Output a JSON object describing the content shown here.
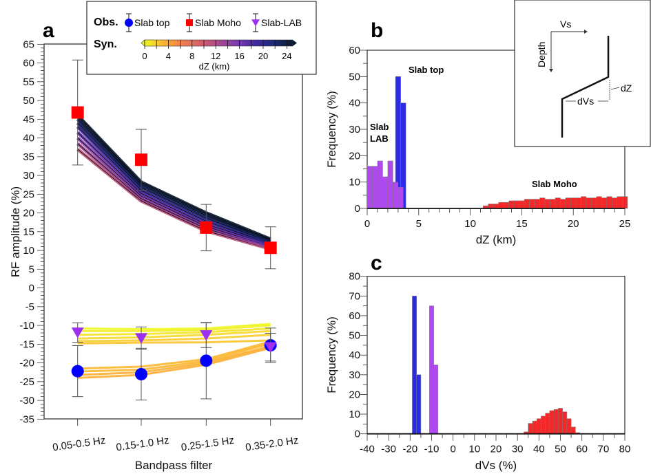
{
  "chart_data": [
    {
      "panel": "a",
      "type": "line",
      "xlabel": "Bandpass filter",
      "ylabel": "RF amplitude (%)",
      "categories": [
        "0.05-0.5 Hz",
        "0.15-1.0 Hz",
        "0.25-1.5 Hz",
        "0.35-2.0 Hz"
      ],
      "ylim": [
        -35,
        65
      ],
      "yticks": [
        65,
        60,
        55,
        50,
        45,
        40,
        35,
        30,
        25,
        20,
        15,
        10,
        5,
        0,
        -5,
        -10,
        -15,
        -20,
        -25,
        -30,
        -35
      ],
      "legend": {
        "obs_label": "Obs.",
        "syn_label": "Syn.",
        "entries": [
          {
            "name": "Slab top",
            "marker": "circle",
            "color": "#0000ff"
          },
          {
            "name": "Slab Moho",
            "marker": "square",
            "color": "#ff0000"
          },
          {
            "name": "Slab-LAB",
            "marker": "triangle-down",
            "color": "#9b30f0"
          }
        ],
        "colorbar": {
          "label": "dZ (km)",
          "ticks": [
            "0",
            "4",
            "8",
            "12",
            "16",
            "20",
            "24"
          ],
          "range": [
            0,
            25
          ],
          "colors": [
            "#f0f921",
            "#fdb42f",
            "#f0804f",
            "#d6606a",
            "#a84a8c",
            "#7a3ab0",
            "#3f2aa0",
            "#1c2a70",
            "#0a1a30"
          ]
        }
      },
      "observed": [
        {
          "name": "Slab Moho",
          "values": [
            46.8,
            34.2,
            16.1,
            10.7
          ],
          "errors": [
            14.0,
            8.1,
            6.2,
            5.6
          ]
        },
        {
          "name": "Slab top",
          "values": [
            -22.2,
            -23.0,
            -19.4,
            -15.3
          ],
          "errors": [
            6.8,
            6.9,
            10.2,
            4.6
          ]
        },
        {
          "name": "Slab-LAB",
          "values": [
            -11.9,
            -13.4,
            -12.6,
            -15.8
          ],
          "errors": [
            2.6,
            3.0,
            3.3,
            3.7
          ]
        }
      ],
      "synthetic": {
        "moho": [
          {
            "dZ": 11,
            "values": [
              37.0,
              23.2,
              15.2,
              10.4
            ]
          },
          {
            "dZ": 13,
            "values": [
              38.5,
              23.8,
              15.8,
              10.8
            ]
          },
          {
            "dZ": 15,
            "values": [
              40.0,
              24.5,
              16.4,
              11.1
            ]
          },
          {
            "dZ": 17,
            "values": [
              41.5,
              25.2,
              17.0,
              11.5
            ]
          },
          {
            "dZ": 19,
            "values": [
              43.0,
              26.0,
              17.8,
              11.8
            ]
          },
          {
            "dZ": 21,
            "values": [
              44.0,
              26.8,
              18.6,
              12.2
            ]
          },
          {
            "dZ": 23,
            "values": [
              45.0,
              27.5,
              19.3,
              12.6
            ]
          },
          {
            "dZ": 25,
            "values": [
              46.0,
              28.2,
              20.0,
              13.0
            ]
          }
        ],
        "lab": [
          {
            "dZ": 0,
            "values": [
              -10.8,
              -11.0,
              -10.8,
              -9.6
            ]
          },
          {
            "dZ": 0.5,
            "values": [
              -11.5,
              -11.5,
              -11.2,
              -10.0
            ]
          },
          {
            "dZ": 1,
            "values": [
              -12.5,
              -12.3,
              -11.8,
              -10.8
            ]
          },
          {
            "dZ": 1.5,
            "values": [
              -13.5,
              -13.2,
              -12.5,
              -11.5
            ]
          },
          {
            "dZ": 2,
            "values": [
              -14.2,
              -14.0,
              -13.5,
              -12.5
            ]
          },
          {
            "dZ": 2.5,
            "values": [
              -14.8,
              -14.6,
              -14.5,
              -14.0
            ]
          }
        ],
        "top": [
          {
            "dZ": 3,
            "values": [
              -21.5,
              -21.0,
              -19.0,
              -14.3
            ]
          },
          {
            "dZ": 3,
            "values": [
              -22.3,
              -21.8,
              -19.5,
              -14.8
            ]
          },
          {
            "dZ": 3.5,
            "values": [
              -23.2,
              -22.5,
              -20.0,
              -15.5
            ]
          },
          {
            "dZ": 3.5,
            "values": [
              -24.0,
              -23.2,
              -20.5,
              -16.0
            ]
          }
        ]
      }
    },
    {
      "panel": "b",
      "type": "bar",
      "xlabel": "dZ (km)",
      "ylabel": "Frequency (%)",
      "xlim": [
        0,
        25
      ],
      "ylim": [
        0,
        60
      ],
      "xticks": [
        "0",
        "5",
        "10",
        "15",
        "20",
        "25"
      ],
      "yticks": [
        "0",
        "10",
        "20",
        "30",
        "40",
        "50",
        "60"
      ],
      "annotations": [
        "Slab top",
        "Slab LAB",
        "Slab Moho"
      ],
      "series": [
        {
          "name": "Slab top",
          "color": "#2b2be8",
          "bin_width": 0.5,
          "bin_starts": [
            2.75,
            3.25
          ],
          "values": [
            50,
            40
          ]
        },
        {
          "name": "Slab LAB",
          "color": "#b04af0",
          "bin_width": 0.5,
          "bin_starts": [
            0,
            0.5,
            1,
            1.5,
            2,
            2.5,
            3
          ],
          "values": [
            16,
            16,
            18,
            12,
            18,
            10,
            8
          ]
        },
        {
          "name": "Slab Moho",
          "color": "#f42828",
          "bin_width": 0.5,
          "bin_starts": [
            11.25,
            11.75,
            12.25,
            12.75,
            13.25,
            13.75,
            14.25,
            14.75,
            15.25,
            15.75,
            16.25,
            16.75,
            17.25,
            17.75,
            18.25,
            18.75,
            19.25,
            19.75,
            20.25,
            20.75,
            21.25,
            21.75,
            22.25,
            22.75,
            23.25,
            23.75,
            24.25,
            24.75
          ],
          "values": [
            1,
            1.7,
            1.7,
            2.3,
            2.3,
            2.9,
            2.9,
            2.9,
            3.5,
            3.5,
            3.5,
            4,
            3.5,
            3.5,
            4,
            3.5,
            4,
            4,
            4,
            4.5,
            4,
            4,
            4.5,
            4,
            4.5,
            4,
            4.5,
            4.5
          ]
        }
      ],
      "inset": {
        "vs_label": "Vs",
        "depth_label": "Depth",
        "dvs_label": "dVs",
        "dz_label": "dZ"
      }
    },
    {
      "panel": "c",
      "type": "bar",
      "xlabel": "dVs (%)",
      "ylabel": "Frequency (%)",
      "xlim": [
        -40,
        80
      ],
      "ylim": [
        0,
        80
      ],
      "xticks": [
        "-40",
        "-30",
        "-20",
        "-10",
        "0",
        "10",
        "20",
        "30",
        "40",
        "50",
        "60",
        "70",
        "80"
      ],
      "yticks": [
        "0",
        "10",
        "20",
        "30",
        "40",
        "50",
        "60",
        "70",
        "80"
      ],
      "series": [
        {
          "name": "Slab top",
          "color": "#2b2be8",
          "bin_width": 2,
          "bin_starts": [
            -19,
            -17
          ],
          "values": [
            70,
            30
          ]
        },
        {
          "name": "Slab LAB",
          "color": "#b04af0",
          "bin_width": 2,
          "bin_starts": [
            -11,
            -9
          ],
          "values": [
            65,
            35
          ]
        },
        {
          "name": "Slab Moho",
          "color": "#f42828",
          "bin_width": 2,
          "bin_starts": [
            33,
            35,
            37,
            39,
            41,
            43,
            45,
            47,
            49,
            51,
            53,
            55,
            57
          ],
          "values": [
            1,
            5.3,
            6.5,
            7.7,
            9,
            10.5,
            11.8,
            12.4,
            13,
            11.2,
            7.7,
            3.5,
            0.6
          ]
        }
      ]
    }
  ]
}
